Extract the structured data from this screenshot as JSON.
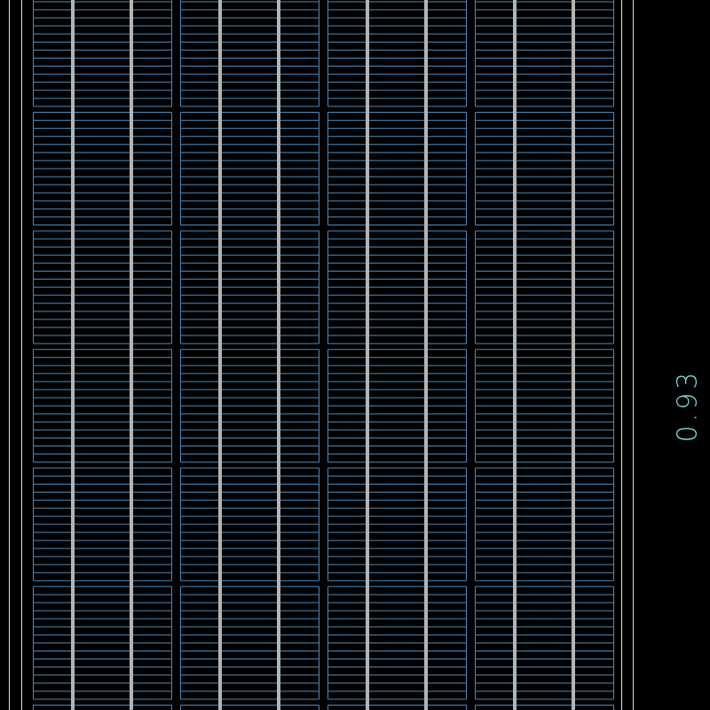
{
  "drawing": {
    "dimension_label": "0.93",
    "colors": {
      "background": "#000000",
      "cell_outline": "#4a8cc0",
      "busbar": "#b4b4b4",
      "frame": "#e0e0e0",
      "dimension_text": "#7fd6d6"
    },
    "columns": 4,
    "busbars_per_column": 2
  }
}
